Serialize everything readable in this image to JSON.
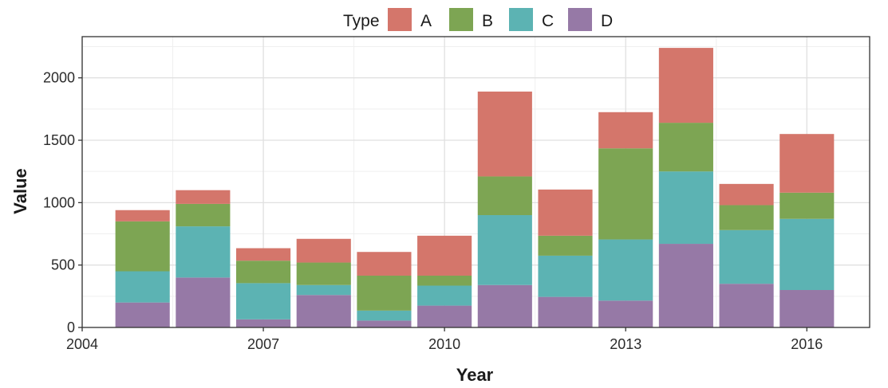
{
  "chart_data": {
    "type": "bar",
    "stacked": true,
    "x": [
      2005,
      2006,
      2007,
      2008,
      2009,
      2010,
      2011,
      2012,
      2013,
      2014,
      2015,
      2016
    ],
    "series": [
      {
        "name": "A",
        "color": "#D4766B",
        "values": [
          90,
          110,
          100,
          190,
          190,
          320,
          680,
          370,
          290,
          600,
          170,
          470
        ]
      },
      {
        "name": "B",
        "color": "#7DA553",
        "values": [
          400,
          180,
          180,
          180,
          280,
          80,
          310,
          160,
          730,
          390,
          200,
          210
        ]
      },
      {
        "name": "C",
        "color": "#5CB3B3",
        "values": [
          250,
          410,
          290,
          80,
          80,
          160,
          560,
          330,
          490,
          580,
          430,
          570
        ]
      },
      {
        "name": "D",
        "color": "#9679A6",
        "values": [
          200,
          400,
          65,
          260,
          55,
          175,
          340,
          245,
          215,
          670,
          350,
          300
        ]
      }
    ],
    "xlabel": "Year",
    "ylabel": "Value",
    "xlim": [
      2004,
      2017.04
    ],
    "ylim": [
      0,
      2330
    ],
    "x_ticks": [
      2004,
      2007,
      2010,
      2013,
      2016
    ],
    "y_ticks": [
      0,
      500,
      1000,
      1500,
      2000
    ],
    "legend_title": "Type",
    "legend_position": "top",
    "grid": true
  }
}
